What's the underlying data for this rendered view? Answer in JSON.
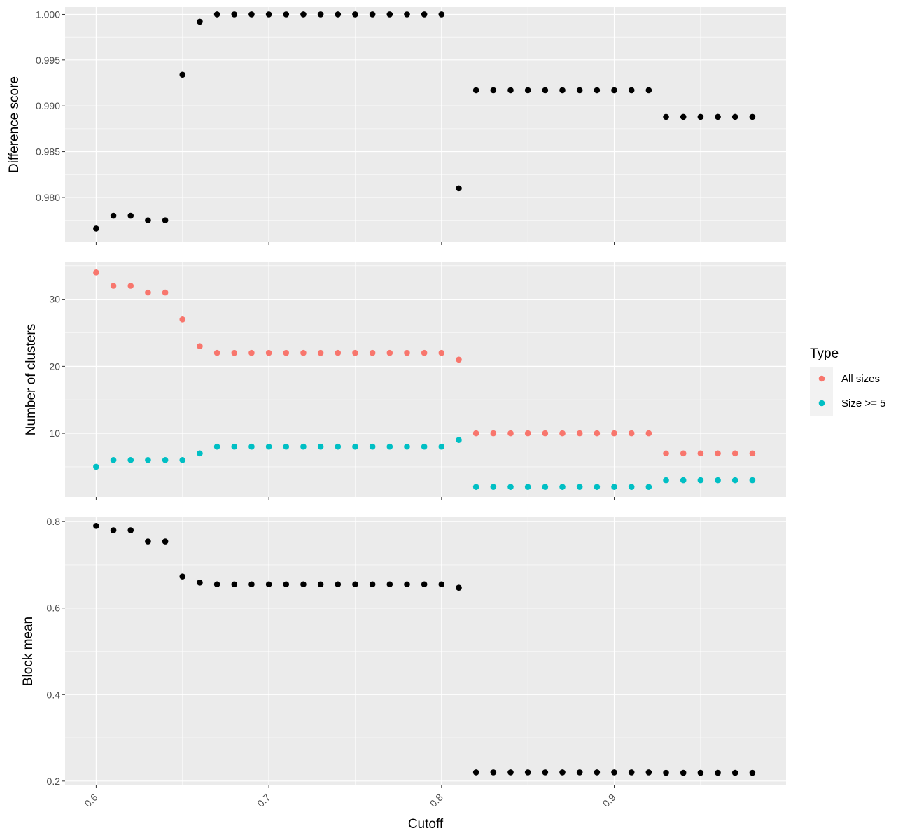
{
  "chart_data": {
    "type": "scatter",
    "layout": "faceted-stack",
    "xlabel": "Cutoff",
    "x_ticks": [
      0.6,
      0.7,
      0.8,
      0.9
    ],
    "xlim": [
      0.582,
      0.9995
    ],
    "grid": true,
    "x": [
      0.6,
      0.61,
      0.62,
      0.63,
      0.64,
      0.65,
      0.66,
      0.67,
      0.68,
      0.69,
      0.7,
      0.71,
      0.72,
      0.73,
      0.74,
      0.75,
      0.76,
      0.77,
      0.78,
      0.79,
      0.8,
      0.81,
      0.82,
      0.83,
      0.84,
      0.85,
      0.86,
      0.87,
      0.88,
      0.89,
      0.9,
      0.91,
      0.92,
      0.93,
      0.94,
      0.95,
      0.96,
      0.97,
      0.98
    ],
    "panels": [
      {
        "ylabel": "Difference score",
        "ylim": [
          0.9751,
          1.0008
        ],
        "y_ticks": [
          0.98,
          0.985,
          0.99,
          0.995,
          1.0
        ],
        "y_tick_labels": [
          "0.980",
          "0.985",
          "0.990",
          "0.995",
          "1.000"
        ],
        "series": [
          {
            "color": "#000000",
            "values": [
              0.9766,
              0.978,
              0.978,
              0.9775,
              0.9775,
              0.9934,
              0.9992,
              1.0,
              1.0,
              1.0,
              1.0,
              1.0,
              1.0,
              1.0,
              1.0,
              1.0,
              1.0,
              1.0,
              1.0,
              1.0,
              1.0,
              0.981,
              0.9917,
              0.9917,
              0.9917,
              0.9917,
              0.9917,
              0.9917,
              0.9917,
              0.9917,
              0.9917,
              0.9917,
              0.9917,
              0.9888,
              0.9888,
              0.9888,
              0.9888,
              0.9888,
              0.9888
            ]
          }
        ]
      },
      {
        "ylabel": "Number of clusters",
        "ylim": [
          0.5,
          35.5
        ],
        "y_ticks": [
          10,
          20,
          30
        ],
        "y_tick_labels": [
          "10",
          "20",
          "30"
        ],
        "series": [
          {
            "name": "All sizes",
            "color": "#F8766D",
            "values": [
              34,
              32,
              32,
              31,
              31,
              27,
              23,
              22,
              22,
              22,
              22,
              22,
              22,
              22,
              22,
              22,
              22,
              22,
              22,
              22,
              22,
              21,
              10,
              10,
              10,
              10,
              10,
              10,
              10,
              10,
              10,
              10,
              10,
              7,
              7,
              7,
              7,
              7,
              7
            ]
          },
          {
            "name": "Size >= 5",
            "color": "#00BFC4",
            "values": [
              5,
              6,
              6,
              6,
              6,
              6,
              7,
              8,
              8,
              8,
              8,
              8,
              8,
              8,
              8,
              8,
              8,
              8,
              8,
              8,
              8,
              9,
              2,
              2,
              2,
              2,
              2,
              2,
              2,
              2,
              2,
              2,
              2,
              3,
              3,
              3,
              3,
              3,
              3
            ]
          }
        ]
      },
      {
        "ylabel": "Block mean",
        "ylim": [
          0.19,
          0.81
        ],
        "y_ticks": [
          0.2,
          0.4,
          0.6,
          0.8
        ],
        "y_tick_labels": [
          "0.2",
          "0.4",
          "0.6",
          "0.8"
        ],
        "series": [
          {
            "color": "#000000",
            "values": [
              0.79,
              0.78,
              0.78,
              0.754,
              0.754,
              0.673,
              0.659,
              0.655,
              0.655,
              0.655,
              0.655,
              0.655,
              0.655,
              0.655,
              0.655,
              0.655,
              0.655,
              0.655,
              0.655,
              0.655,
              0.655,
              0.647,
              0.22,
              0.22,
              0.22,
              0.22,
              0.22,
              0.22,
              0.22,
              0.22,
              0.22,
              0.22,
              0.22,
              0.219,
              0.219,
              0.219,
              0.219,
              0.219,
              0.219
            ]
          }
        ]
      }
    ],
    "legend": {
      "title": "Type",
      "placement": "right",
      "entries": [
        "All sizes",
        "Size >= 5"
      ],
      "colors": [
        "#F8766D",
        "#00BFC4"
      ]
    },
    "panel_background": "#EBEBEB",
    "grid_color": "#FFFFFF"
  }
}
